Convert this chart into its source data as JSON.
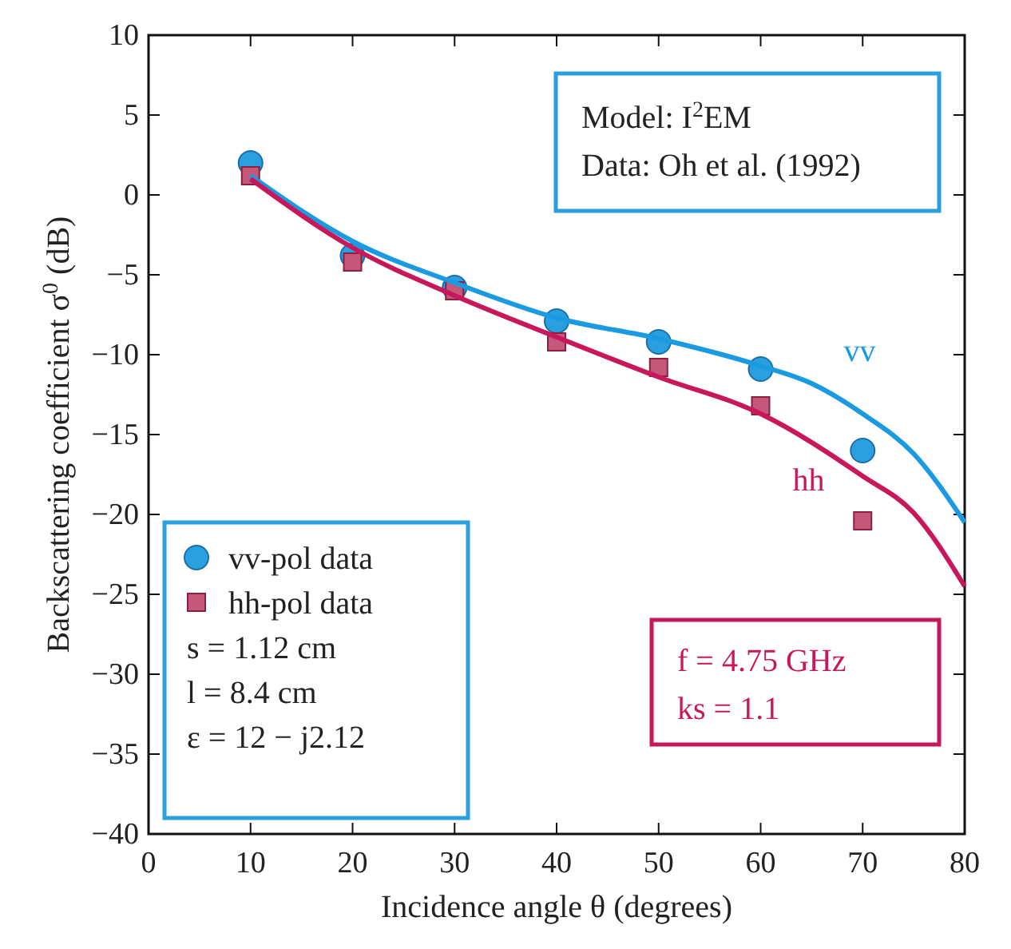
{
  "chart_data": {
    "type": "scatter",
    "xlabel": "Incidence angle θ (degrees)",
    "ylabel": "Backscattering coefficient σ$^{0}$ (dB)",
    "xlim": [
      0,
      80
    ],
    "xticks": [
      0,
      10,
      20,
      30,
      40,
      50,
      60,
      70,
      80
    ],
    "ylim": [
      -40,
      10
    ],
    "yticks": [
      -40,
      -35,
      -30,
      -25,
      -20,
      -15,
      -10,
      -5,
      0,
      5,
      10
    ],
    "grid": false,
    "legend": "bottom left",
    "series": [
      {
        "name": "vv-pol data",
        "marker": "circle",
        "color": "#2a9fe0",
        "x": [
          10,
          20,
          30,
          40,
          50,
          60,
          70
        ],
        "values": [
          2.0,
          -3.8,
          -5.8,
          -7.9,
          -9.2,
          -10.9,
          -16.0
        ]
      },
      {
        "name": "hh-pol data",
        "marker": "square",
        "color": "#c4587a",
        "x": [
          10,
          20,
          30,
          40,
          50,
          60,
          70
        ],
        "values": [
          1.2,
          -4.2,
          -6.0,
          -9.2,
          -10.8,
          -13.2,
          -20.4
        ]
      },
      {
        "name": "vv",
        "type": "line",
        "color": "#1a9ae0",
        "x": [
          10,
          20,
          30,
          40,
          50,
          60,
          65,
          70,
          75,
          80
        ],
        "values": [
          1.2,
          -2.9,
          -5.5,
          -7.7,
          -9.0,
          -10.7,
          -11.8,
          -13.7,
          -16.2,
          -20.5
        ]
      },
      {
        "name": "hh",
        "type": "line",
        "color": "#c8175a",
        "x": [
          10,
          20,
          30,
          40,
          50,
          60,
          70,
          75,
          80
        ],
        "values": [
          1.0,
          -3.3,
          -6.3,
          -8.9,
          -11.4,
          -13.7,
          -17.6,
          -19.9,
          -24.5
        ]
      }
    ],
    "annotations": [
      "Model: I$^{2}$EM",
      "Data: Oh et al. (1992)",
      "s = 1.12 cm",
      "l = 8.4 cm",
      "ε = 12 − j2.12",
      "f = 4.75 GHz",
      "ks = 1.1"
    ]
  }
}
